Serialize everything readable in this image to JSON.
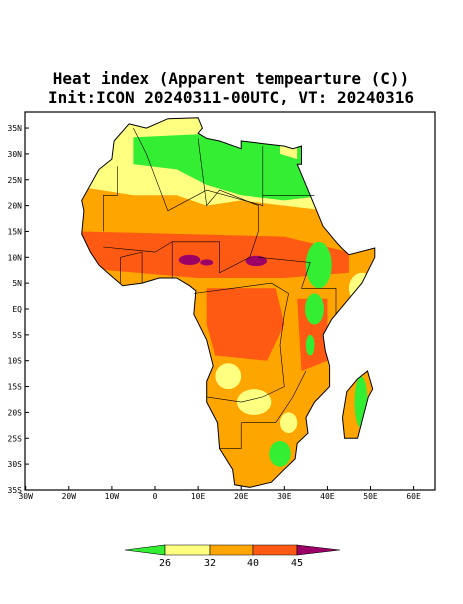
{
  "header": {
    "title": "Heat index (Apparent tempearture (C))",
    "subtitle": "Init:ICON 20240311-00UTC, VT: 20240316"
  },
  "map": {
    "lat_labels": [
      "35N",
      "30N",
      "25N",
      "20N",
      "15N",
      "10N",
      "5N",
      "EQ",
      "5S",
      "10S",
      "15S",
      "20S",
      "25S",
      "30S",
      "35S"
    ],
    "lon_labels": [
      "30W",
      "20W",
      "10W",
      "0",
      "10E",
      "20E",
      "30E",
      "40E",
      "50E",
      "60E"
    ]
  },
  "colorbar": {
    "labels": [
      "26",
      "32",
      "40",
      "45"
    ],
    "colors": [
      "#33ee33",
      "#ffff80",
      "#ffa500",
      "#ff5a14",
      "#9c0066"
    ]
  }
}
